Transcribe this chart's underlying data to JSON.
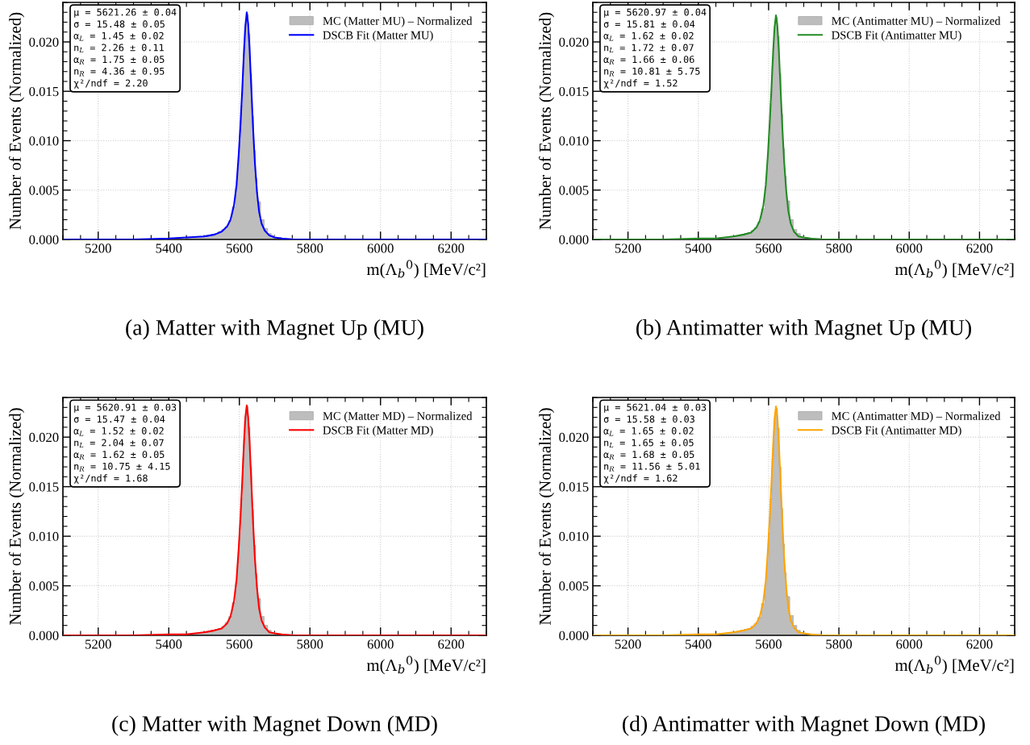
{
  "chart_data": [
    {
      "type": "histogram",
      "title": "(a) Matter with Magnet Up (MU)",
      "xlabel": "m(Λ$_{b}$$^{0}$) [MeV/c²]",
      "ylabel": "Number of Events (Normalized)",
      "xlim": [
        5100,
        6300
      ],
      "ylim": [
        0,
        0.024
      ],
      "xticks": [
        5200,
        5400,
        5600,
        5800,
        6000,
        6200
      ],
      "yticks": [
        {
          "value": 0,
          "label": "0.000"
        },
        {
          "value": 0.005,
          "label": "0.005"
        },
        {
          "value": 0.01,
          "label": "0.010"
        },
        {
          "value": 0.015,
          "label": "0.015"
        },
        {
          "value": 0.02,
          "label": "0.020"
        }
      ],
      "grid": true,
      "legend": "top right",
      "annotations": [
        "μ = 5621.26 ± 0.04\nσ = 15.48 ± 0.05\nα$_{L}$ = 1.45 ± 0.02\nn$_{L}$ = 2.26 ± 0.11\nα$_{R}$ = 1.75 ± 0.05\nn$_{R}$ = 4.36 ± 0.95\nχ²/ndf = 2.20"
      ],
      "series": [
        {
          "type": "histogram",
          "name": "MC (Matter MU) – Normalized",
          "color": "#bdbdbd",
          "bins": [
            5450,
            5460,
            5470,
            5480,
            5490,
            5500,
            5510,
            5520,
            5530,
            5540,
            5550,
            5560,
            5570,
            5580,
            5590,
            5595,
            5600,
            5605,
            5610,
            5615,
            5620,
            5625,
            5630,
            5635,
            5640,
            5645,
            5650,
            5660,
            5670,
            5680,
            5690,
            5700,
            5710,
            5720,
            5730,
            5740,
            5750
          ],
          "values": [
            0.0002,
            0.0002,
            0.0002,
            0.0003,
            0.0003,
            0.0004,
            0.0004,
            0.0005,
            0.0006,
            0.0008,
            0.001,
            0.0013,
            0.0019,
            0.0033,
            0.0052,
            0.0072,
            0.01,
            0.0135,
            0.0175,
            0.0212,
            0.0228,
            0.0208,
            0.0168,
            0.0125,
            0.009,
            0.0062,
            0.0038,
            0.002,
            0.0011,
            0.0006,
            0.0004,
            0.0002,
            0.0002,
            0.0001,
            0.0001,
            0.0001
          ]
        },
        {
          "type": "line",
          "name": "DSCB Fit (Matter MU)",
          "color": "#0000ff",
          "x": [
            5100,
            5300,
            5400,
            5450,
            5500,
            5530,
            5550,
            5565,
            5575,
            5585,
            5592,
            5598,
            5603,
            5608,
            5613,
            5617,
            5621,
            5625,
            5629,
            5634,
            5639,
            5644,
            5650,
            5656,
            5663,
            5672,
            5685,
            5700,
            5720,
            5750,
            5800,
            6300
          ],
          "values": [
            0,
            0,
            0.0001,
            0.0002,
            0.0003,
            0.0005,
            0.0008,
            0.0013,
            0.002,
            0.0035,
            0.0055,
            0.0085,
            0.0115,
            0.015,
            0.019,
            0.0216,
            0.023,
            0.0218,
            0.0193,
            0.0152,
            0.0112,
            0.0078,
            0.0048,
            0.0028,
            0.0016,
            0.0009,
            0.0004,
            0.0002,
            0.0001,
            0,
            0,
            0
          ]
        }
      ]
    },
    {
      "type": "histogram",
      "title": "(b) Antimatter with Magnet Up (MU)",
      "xlabel": "m(Λ$_{b}$$^{0}$) [MeV/c²]",
      "ylabel": "Number of Events (Normalized)",
      "xlim": [
        5100,
        6300
      ],
      "ylim": [
        0,
        0.024
      ],
      "xticks": [
        5200,
        5400,
        5600,
        5800,
        6000,
        6200
      ],
      "yticks": [
        {
          "value": 0,
          "label": "0.000"
        },
        {
          "value": 0.005,
          "label": "0.005"
        },
        {
          "value": 0.01,
          "label": "0.010"
        },
        {
          "value": 0.015,
          "label": "0.015"
        },
        {
          "value": 0.02,
          "label": "0.020"
        }
      ],
      "grid": true,
      "legend": "top right",
      "annotations": [
        "μ = 5620.97 ± 0.04\nσ = 15.81 ± 0.04\nα$_{L}$ = 1.62 ± 0.02\nn$_{L}$ = 1.72 ± 0.07\nα$_{R}$ = 1.66 ± 0.06\nn$_{R}$ = 10.81 ± 5.75\nχ²/ndf = 1.52"
      ],
      "series": [
        {
          "type": "histogram",
          "name": "MC (Antimatter MU) – Normalized",
          "color": "#bdbdbd",
          "bins": [
            5450,
            5460,
            5470,
            5480,
            5490,
            5500,
            5510,
            5520,
            5530,
            5540,
            5550,
            5560,
            5570,
            5580,
            5590,
            5595,
            5600,
            5605,
            5610,
            5615,
            5620,
            5625,
            5630,
            5635,
            5640,
            5645,
            5650,
            5660,
            5670,
            5680,
            5690,
            5700,
            5710,
            5720,
            5730,
            5740,
            5750
          ],
          "values": [
            0.0001,
            0.0002,
            0.0002,
            0.0002,
            0.0003,
            0.0003,
            0.0004,
            0.0005,
            0.0006,
            0.0007,
            0.0009,
            0.0012,
            0.0018,
            0.0031,
            0.005,
            0.0072,
            0.0102,
            0.0137,
            0.0176,
            0.021,
            0.0225,
            0.0206,
            0.0168,
            0.0127,
            0.0092,
            0.0064,
            0.0039,
            0.002,
            0.001,
            0.0006,
            0.0003,
            0.0002,
            0.0001,
            0.0001,
            0.0001,
            0.0001
          ]
        },
        {
          "type": "line",
          "name": "DSCB Fit (Antimatter MU)",
          "color": "#228b22",
          "x": [
            5100,
            5300,
            5400,
            5450,
            5500,
            5530,
            5550,
            5565,
            5575,
            5585,
            5592,
            5598,
            5603,
            5608,
            5613,
            5617,
            5621,
            5625,
            5629,
            5634,
            5639,
            5644,
            5650,
            5656,
            5663,
            5672,
            5685,
            5700,
            5720,
            5750,
            5800,
            6300
          ],
          "values": [
            0,
            0,
            0.0001,
            0.0001,
            0.0003,
            0.0005,
            0.0007,
            0.0012,
            0.0019,
            0.0034,
            0.0055,
            0.0086,
            0.0117,
            0.0152,
            0.0191,
            0.0215,
            0.0227,
            0.0216,
            0.0192,
            0.0153,
            0.0114,
            0.008,
            0.005,
            0.0029,
            0.0016,
            0.0008,
            0.0003,
            0.0002,
            0.0001,
            0,
            0,
            0
          ]
        }
      ]
    },
    {
      "type": "histogram",
      "title": "(c) Matter with Magnet Down (MD)",
      "xlabel": "m(Λ$_{b}$$^{0}$) [MeV/c²]",
      "ylabel": "Number of Events (Normalized)",
      "xlim": [
        5100,
        6300
      ],
      "ylim": [
        0,
        0.024
      ],
      "xticks": [
        5200,
        5400,
        5600,
        5800,
        6000,
        6200
      ],
      "yticks": [
        {
          "value": 0,
          "label": "0.000"
        },
        {
          "value": 0.005,
          "label": "0.005"
        },
        {
          "value": 0.01,
          "label": "0.010"
        },
        {
          "value": 0.015,
          "label": "0.015"
        },
        {
          "value": 0.02,
          "label": "0.020"
        }
      ],
      "grid": true,
      "legend": "top right",
      "annotations": [
        "μ = 5620.91 ± 0.03\nσ = 15.47 ± 0.04\nα$_{L}$ = 1.52 ± 0.02\nn$_{L}$ = 2.04 ± 0.07\nα$_{R}$ = 1.62 ± 0.05\nn$_{R}$ = 10.75 ± 4.15\nχ²/ndf = 1.68"
      ],
      "series": [
        {
          "type": "histogram",
          "name": "MC (Matter MD) – Normalized",
          "color": "#bdbdbd",
          "bins": [
            5450,
            5460,
            5470,
            5480,
            5490,
            5500,
            5510,
            5520,
            5530,
            5540,
            5550,
            5560,
            5570,
            5580,
            5590,
            5595,
            5600,
            5605,
            5610,
            5615,
            5620,
            5625,
            5630,
            5635,
            5640,
            5645,
            5650,
            5660,
            5670,
            5680,
            5690,
            5700,
            5710,
            5720,
            5730,
            5740,
            5750
          ],
          "values": [
            0.0001,
            0.0002,
            0.0002,
            0.0002,
            0.0003,
            0.0003,
            0.0004,
            0.0005,
            0.0006,
            0.0007,
            0.0009,
            0.0013,
            0.0019,
            0.0033,
            0.0053,
            0.0074,
            0.0103,
            0.0138,
            0.0179,
            0.0216,
            0.0231,
            0.021,
            0.017,
            0.0127,
            0.0091,
            0.0062,
            0.0037,
            0.0019,
            0.001,
            0.0005,
            0.0003,
            0.0002,
            0.0001,
            0.0001,
            0.0001,
            0.0001
          ]
        },
        {
          "type": "line",
          "name": "DSCB Fit (Matter MD)",
          "color": "#ff0000",
          "x": [
            5100,
            5300,
            5400,
            5450,
            5500,
            5530,
            5550,
            5565,
            5575,
            5585,
            5592,
            5598,
            5603,
            5608,
            5613,
            5617,
            5621,
            5625,
            5629,
            5634,
            5639,
            5644,
            5650,
            5656,
            5663,
            5672,
            5685,
            5700,
            5720,
            5750,
            5800,
            6300
          ],
          "values": [
            0,
            0,
            0.0001,
            0.0001,
            0.0003,
            0.0005,
            0.0007,
            0.0012,
            0.0019,
            0.0035,
            0.0056,
            0.0087,
            0.0118,
            0.0154,
            0.0194,
            0.022,
            0.0232,
            0.022,
            0.0195,
            0.0154,
            0.0113,
            0.0078,
            0.0048,
            0.0027,
            0.0015,
            0.0008,
            0.0003,
            0.0002,
            0.0001,
            0,
            0,
            0
          ]
        }
      ]
    },
    {
      "type": "histogram",
      "title": "(d) Antimatter with Magnet Down (MD)",
      "xlabel": "m(Λ$_{b}$$^{0}$) [MeV/c²]",
      "ylabel": "Number of Events (Normalized)",
      "xlim": [
        5100,
        6300
      ],
      "ylim": [
        0,
        0.024
      ],
      "xticks": [
        5200,
        5400,
        5600,
        5800,
        6000,
        6200
      ],
      "yticks": [
        {
          "value": 0,
          "label": "0.000"
        },
        {
          "value": 0.005,
          "label": "0.005"
        },
        {
          "value": 0.01,
          "label": "0.010"
        },
        {
          "value": 0.015,
          "label": "0.015"
        },
        {
          "value": 0.02,
          "label": "0.020"
        }
      ],
      "grid": true,
      "legend": "top right",
      "annotations": [
        "μ = 5621.04 ± 0.03\nσ = 15.58 ± 0.03\nα$_{L}$ = 1.65 ± 0.02\nn$_{L}$ = 1.65 ± 0.05\nα$_{R}$ = 1.68 ± 0.05\nn$_{R}$ = 11.56 ± 5.01\nχ²/ndf = 1.62"
      ],
      "series": [
        {
          "type": "histogram",
          "name": "MC (Antimatter MD) – Normalized",
          "color": "#bdbdbd",
          "bins": [
            5450,
            5460,
            5470,
            5480,
            5490,
            5500,
            5510,
            5520,
            5530,
            5540,
            5550,
            5560,
            5570,
            5580,
            5590,
            5595,
            5600,
            5605,
            5610,
            5615,
            5620,
            5625,
            5630,
            5635,
            5640,
            5645,
            5650,
            5660,
            5670,
            5680,
            5690,
            5700,
            5710,
            5720,
            5730,
            5740,
            5750
          ],
          "values": [
            0.0001,
            0.0002,
            0.0002,
            0.0002,
            0.0003,
            0.0003,
            0.0004,
            0.0005,
            0.0006,
            0.0007,
            0.0009,
            0.0012,
            0.0018,
            0.0032,
            0.0051,
            0.0073,
            0.0103,
            0.0138,
            0.0178,
            0.0214,
            0.0229,
            0.0209,
            0.017,
            0.0128,
            0.0092,
            0.0063,
            0.0039,
            0.002,
            0.001,
            0.0005,
            0.0003,
            0.0002,
            0.0001,
            0.0001,
            0.0001,
            0.0001
          ]
        },
        {
          "type": "line",
          "name": "DSCB Fit (Antimatter MD)",
          "color": "#ffa500",
          "x": [
            5100,
            5300,
            5400,
            5450,
            5500,
            5530,
            5550,
            5565,
            5575,
            5585,
            5592,
            5598,
            5603,
            5608,
            5613,
            5617,
            5621,
            5625,
            5629,
            5634,
            5639,
            5644,
            5650,
            5656,
            5663,
            5672,
            5685,
            5700,
            5720,
            5750,
            5800,
            6300
          ],
          "values": [
            0,
            0,
            0.0001,
            0.0001,
            0.0003,
            0.0005,
            0.0007,
            0.0012,
            0.0019,
            0.0034,
            0.0055,
            0.0086,
            0.0117,
            0.0153,
            0.0193,
            0.0219,
            0.0231,
            0.022,
            0.0195,
            0.0155,
            0.0115,
            0.0079,
            0.0049,
            0.0028,
            0.0015,
            0.0008,
            0.0003,
            0.0002,
            0.0001,
            0,
            0,
            0
          ]
        }
      ]
    }
  ]
}
